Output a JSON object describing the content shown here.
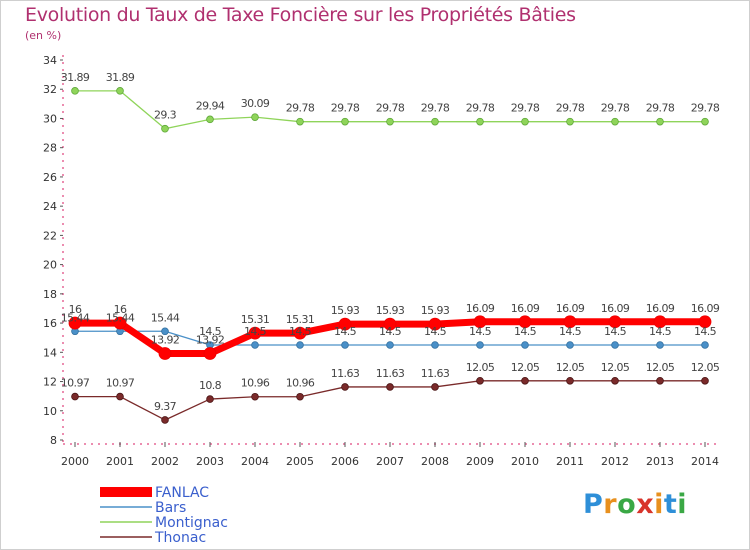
{
  "title": "Evolution du Taux de Taxe Foncière sur les Propriétés Bâties",
  "subtitle": "(en %)",
  "brand": {
    "letters": [
      "P",
      "r",
      "o",
      "x",
      "i",
      "t",
      "i"
    ],
    "colors": [
      "#2e8fd8",
      "#e8901e",
      "#3aa845",
      "#d8342b",
      "#e8901e",
      "#2e8fd8",
      "#3aa845"
    ]
  },
  "chart_data": {
    "type": "line",
    "title": "Evolution du Taux de Taxe Foncière sur les Propriétés Bâties",
    "ylabel": "(en %)",
    "xlabel": "",
    "categories": [
      "2000",
      "2001",
      "2002",
      "2003",
      "2004",
      "2005",
      "2006",
      "2007",
      "2008",
      "2009",
      "2010",
      "2011",
      "2012",
      "2013",
      "2014"
    ],
    "ylim": [
      8,
      34
    ],
    "yticks": [
      "8",
      "10",
      "12",
      "14",
      "16",
      "18",
      "20",
      "22",
      "24",
      "26",
      "28",
      "30",
      "32",
      "34"
    ],
    "grid": false,
    "legend": "bottom-left",
    "series": [
      {
        "name": "FANLAC",
        "color": "#ff0000",
        "values": [
          16,
          16,
          13.92,
          13.92,
          15.31,
          15.31,
          15.93,
          15.93,
          15.93,
          16.09,
          16.09,
          16.09,
          16.09,
          16.09,
          16.09
        ],
        "labels": [
          "16",
          "16",
          "13.92",
          "13.92",
          "15.31",
          "15.31",
          "15.93",
          "15.93",
          "15.93",
          "16.09",
          "16.09",
          "16.09",
          "16.09",
          "16.09",
          "16.09"
        ]
      },
      {
        "name": "Bars",
        "color": "#4a90c8",
        "values": [
          15.44,
          15.44,
          15.44,
          14.5,
          14.5,
          14.5,
          14.5,
          14.5,
          14.5,
          14.5,
          14.5,
          14.5,
          14.5,
          14.5,
          14.5
        ],
        "labels": [
          "15.44",
          "15.44",
          "15.44",
          "14.5",
          "14.5",
          "14.5",
          "14.5",
          "14.5",
          "14.5",
          "14.5",
          "14.5",
          "14.5",
          "14.5",
          "14.5",
          "14.5"
        ]
      },
      {
        "name": "Montignac",
        "color": "#8fd45a",
        "values": [
          31.89,
          31.89,
          29.3,
          29.94,
          30.09,
          29.78,
          29.78,
          29.78,
          29.78,
          29.78,
          29.78,
          29.78,
          29.78,
          29.78,
          29.78
        ],
        "labels": [
          "31.89",
          "31.89",
          "29.3",
          "29.94",
          "30.09",
          "29.78",
          "29.78",
          "29.78",
          "29.78",
          "29.78",
          "29.78",
          "29.78",
          "29.78",
          "29.78",
          "29.78"
        ]
      },
      {
        "name": "Thonac",
        "color": "#7a2a2a",
        "values": [
          10.97,
          10.97,
          9.37,
          10.8,
          10.96,
          10.96,
          11.63,
          11.63,
          11.63,
          12.05,
          12.05,
          12.05,
          12.05,
          12.05,
          12.05
        ],
        "labels": [
          "10.97",
          "10.97",
          "9.37",
          "10.8",
          "10.96",
          "10.96",
          "11.63",
          "11.63",
          "11.63",
          "12.05",
          "12.05",
          "12.05",
          "12.05",
          "12.05",
          "12.05"
        ]
      }
    ]
  }
}
